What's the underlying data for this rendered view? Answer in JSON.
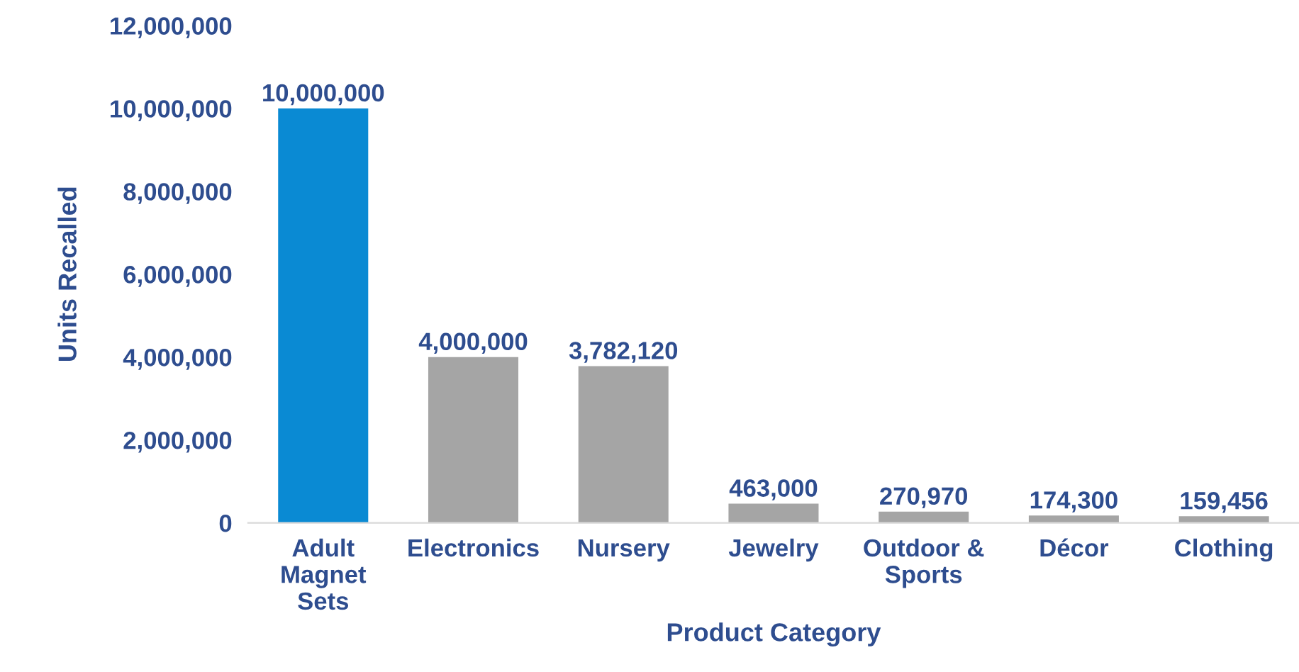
{
  "chart_data": {
    "type": "bar",
    "xlabel": "Product Category",
    "ylabel": "Units Recalled",
    "categories": [
      "Adult\nMagnet\nSets",
      "Electronics",
      "Nursery",
      "Jewelry",
      "Outdoor &\nSports",
      "Décor",
      "Clothing"
    ],
    "values": [
      10000000,
      4000000,
      3782120,
      463000,
      270970,
      174300,
      159456
    ],
    "colors": [
      "#0a8ad3",
      "#a5a5a5",
      "#a5a5a5",
      "#a5a5a5",
      "#a5a5a5",
      "#a5a5a5",
      "#a5a5a5"
    ],
    "ylim": [
      0,
      12000000
    ],
    "yticks": [
      {
        "value": 0,
        "label": "0"
      },
      {
        "value": 2000000,
        "label": "2,000,000"
      },
      {
        "value": 4000000,
        "label": "4,000,000"
      },
      {
        "value": 6000000,
        "label": "6,000,000"
      },
      {
        "value": 8000000,
        "label": "8,000,000"
      },
      {
        "value": 10000000,
        "label": "10,000,000"
      },
      {
        "value": 12000000,
        "label": "12,000,000"
      }
    ],
    "value_labels": [
      "10,000,000",
      "4,000,000",
      "3,782,120",
      "463,000",
      "270,970",
      "174,300",
      "159,456"
    ],
    "grid": false,
    "legend": false
  }
}
